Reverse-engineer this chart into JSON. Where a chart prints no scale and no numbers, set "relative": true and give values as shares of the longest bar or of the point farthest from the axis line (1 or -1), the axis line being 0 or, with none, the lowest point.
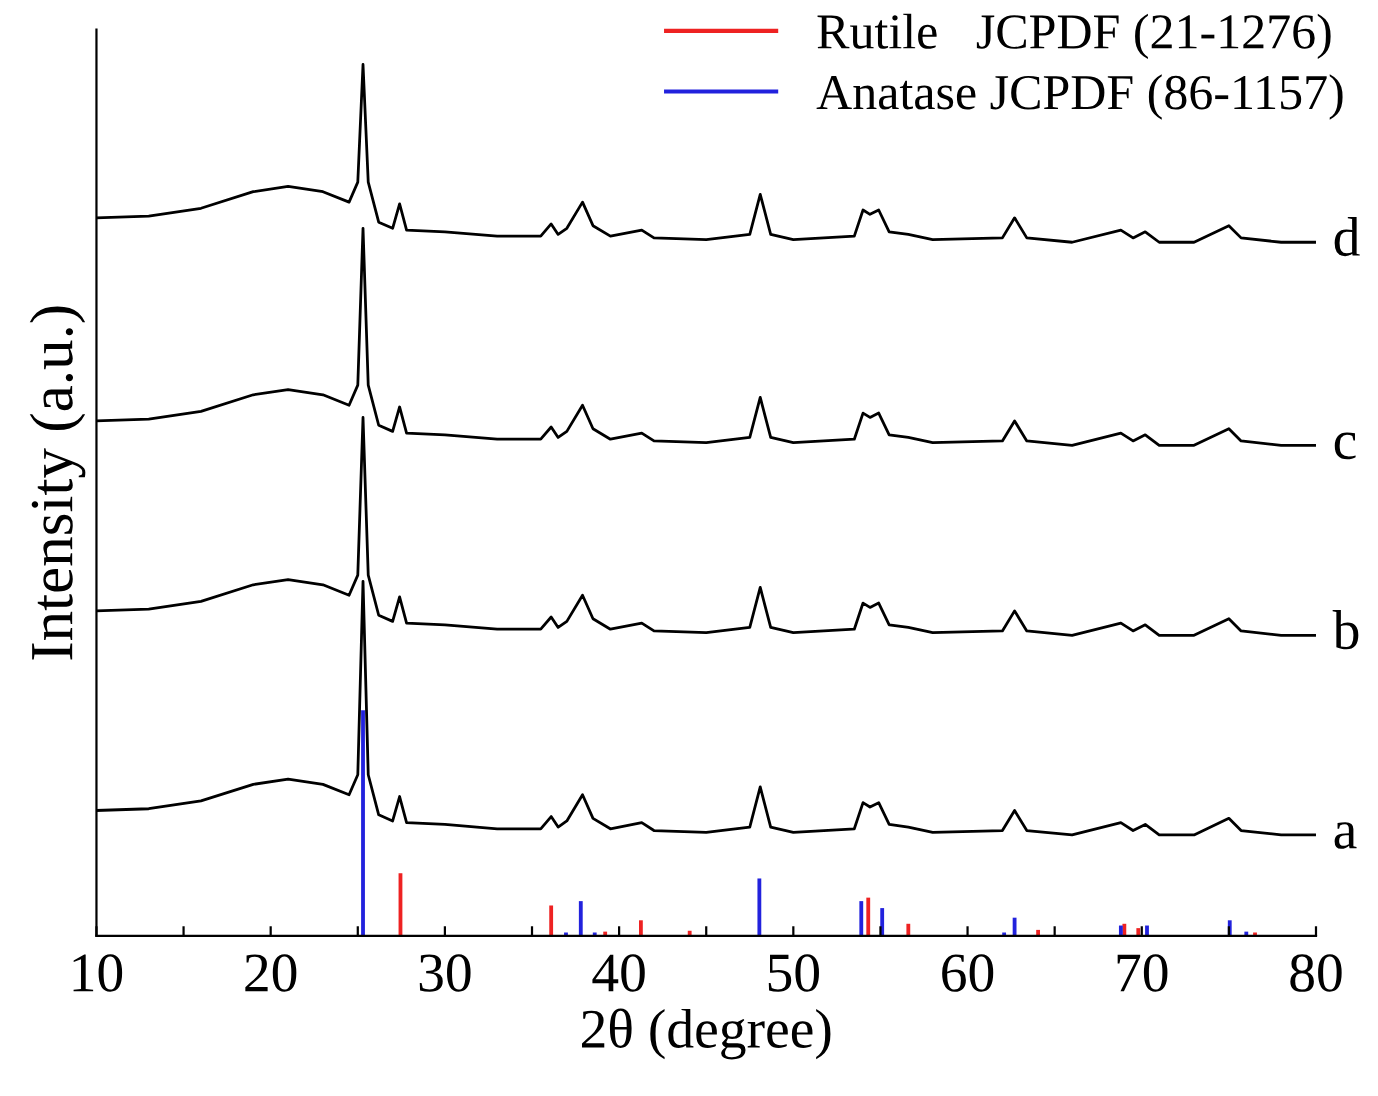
{
  "chart_data": {
    "type": "line",
    "relative": true,
    "xlabel": "2θ (degree)",
    "ylabel": "Intensity (a.u.)",
    "xlim": [
      10,
      80
    ],
    "xticks": [
      10,
      {
        "value": 15,
        "label": null
      },
      20,
      {
        "value": 25,
        "label": null
      },
      30,
      {
        "value": 35,
        "label": null
      },
      40,
      {
        "value": 45,
        "label": null
      },
      50,
      {
        "value": 55,
        "label": null
      },
      60,
      {
        "value": 65,
        "label": null
      },
      70,
      {
        "value": 75,
        "label": null
      },
      80
    ],
    "grid": false,
    "legend": "top right",
    "tick_labels": "x",
    "marker": "none",
    "line_style": "solid",
    "x": [
      10,
      13,
      16,
      19,
      21,
      23,
      24.5,
      25,
      25.3,
      25.6,
      26.2,
      27,
      27.4,
      27.8,
      30,
      33,
      35.5,
      36.1,
      36.5,
      37,
      37.9,
      38.5,
      39.5,
      41.3,
      42,
      45,
      47.5,
      48.1,
      48.7,
      50,
      53.5,
      54,
      54.4,
      54.9,
      55.5,
      56.6,
      58,
      62,
      62.7,
      63.4,
      66,
      68.8,
      69.5,
      70.2,
      71,
      73,
      75,
      75.7,
      78,
      80
    ],
    "series": [
      {
        "name": "d",
        "color": "#000000",
        "values": [
          0.824,
          0.826,
          0.835,
          0.854,
          0.86,
          0.854,
          0.842,
          0.865,
          1.0,
          0.865,
          0.819,
          0.812,
          0.84,
          0.81,
          0.808,
          0.803,
          0.803,
          0.817,
          0.805,
          0.812,
          0.842,
          0.815,
          0.803,
          0.81,
          0.801,
          0.799,
          0.805,
          0.851,
          0.805,
          0.799,
          0.803,
          0.833,
          0.828,
          0.833,
          0.808,
          0.805,
          0.799,
          0.801,
          0.824,
          0.801,
          0.796,
          0.81,
          0.801,
          0.808,
          0.796,
          0.796,
          0.815,
          0.801,
          0.796,
          0.796
        ]
      },
      {
        "name": "c",
        "color": "#000000",
        "values": [
          0.591,
          0.593,
          0.602,
          0.621,
          0.627,
          0.621,
          0.609,
          0.632,
          0.812,
          0.632,
          0.586,
          0.579,
          0.607,
          0.577,
          0.575,
          0.57,
          0.57,
          0.584,
          0.572,
          0.579,
          0.609,
          0.582,
          0.57,
          0.577,
          0.568,
          0.566,
          0.572,
          0.618,
          0.572,
          0.566,
          0.57,
          0.6,
          0.595,
          0.6,
          0.575,
          0.572,
          0.566,
          0.568,
          0.591,
          0.568,
          0.563,
          0.577,
          0.568,
          0.575,
          0.563,
          0.563,
          0.582,
          0.568,
          0.563,
          0.563
        ]
      },
      {
        "name": "b",
        "color": "#000000",
        "values": [
          0.373,
          0.375,
          0.384,
          0.403,
          0.409,
          0.403,
          0.391,
          0.414,
          0.595,
          0.414,
          0.368,
          0.361,
          0.389,
          0.359,
          0.357,
          0.352,
          0.352,
          0.366,
          0.354,
          0.361,
          0.391,
          0.364,
          0.352,
          0.359,
          0.35,
          0.348,
          0.354,
          0.4,
          0.354,
          0.348,
          0.352,
          0.382,
          0.377,
          0.382,
          0.357,
          0.354,
          0.348,
          0.35,
          0.373,
          0.35,
          0.345,
          0.359,
          0.35,
          0.357,
          0.345,
          0.345,
          0.364,
          0.35,
          0.345,
          0.345
        ]
      },
      {
        "name": "a",
        "color": "#000000",
        "values": [
          0.144,
          0.146,
          0.155,
          0.174,
          0.18,
          0.174,
          0.162,
          0.185,
          0.407,
          0.185,
          0.139,
          0.132,
          0.16,
          0.13,
          0.128,
          0.123,
          0.123,
          0.137,
          0.125,
          0.132,
          0.162,
          0.135,
          0.123,
          0.13,
          0.121,
          0.119,
          0.125,
          0.171,
          0.125,
          0.119,
          0.123,
          0.153,
          0.148,
          0.153,
          0.128,
          0.125,
          0.119,
          0.121,
          0.144,
          0.121,
          0.116,
          0.13,
          0.121,
          0.128,
          0.116,
          0.116,
          0.135,
          0.121,
          0.116,
          0.116
        ]
      },
      {
        "name": "Rutile   JCPDF (21-1276)",
        "type": "bar",
        "color": "#ee2222",
        "x": [
          27.45,
          36.1,
          39.2,
          41.25,
          44.05,
          54.3,
          56.6,
          64.05,
          69.0,
          69.8,
          76.5
        ],
        "values": [
          0.072,
          0.035,
          0.005,
          0.018,
          0.006,
          0.044,
          0.014,
          0.007,
          0.014,
          0.009,
          0.004
        ]
      },
      {
        "name": "Anatase JCPDF (86-1157)",
        "type": "bar",
        "color": "#2222dd",
        "x": [
          25.3,
          36.95,
          37.8,
          38.6,
          48.05,
          53.9,
          55.1,
          62.1,
          62.7,
          68.8,
          70.3,
          75.05,
          76.0
        ],
        "values": [
          0.259,
          0.004,
          0.04,
          0.004,
          0.066,
          0.04,
          0.032,
          0.004,
          0.021,
          0.012,
          0.012,
          0.018,
          0.005
        ]
      }
    ]
  }
}
